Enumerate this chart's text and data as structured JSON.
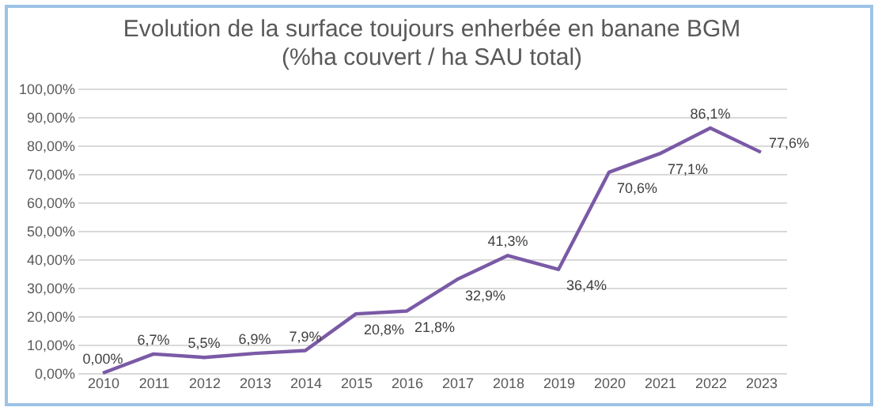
{
  "chart_data": {
    "type": "line",
    "title": "Evolution de la surface toujours enherbée  en banane BGM",
    "subtitle": "(%ha couvert / ha SAU total)",
    "categories": [
      "2010",
      "2011",
      "2012",
      "2013",
      "2014",
      "2015",
      "2016",
      "2017",
      "2018",
      "2019",
      "2020",
      "2021",
      "2022",
      "2023"
    ],
    "series": [
      {
        "color": "#7a5aa6",
        "values": [
          0,
          6.7,
          5.5,
          6.9,
          7.9,
          20.8,
          21.8,
          32.9,
          41.3,
          36.4,
          70.6,
          77.1,
          86.1,
          77.6
        ],
        "value_labels": [
          "0,00%",
          "6,7%",
          "5,5%",
          "6,9%",
          "7,9%",
          "20,8%",
          "21,8%",
          "32,9%",
          "41,3%",
          "36,4%",
          "70,6%",
          "77,1%",
          "86,1%",
          "77,6%"
        ]
      }
    ],
    "ylim": [
      0,
      100
    ],
    "yticks": [
      {
        "value": 0,
        "label": "0,00%"
      },
      {
        "value": 10,
        "label": "10,00%"
      },
      {
        "value": 20,
        "label": "20,00%"
      },
      {
        "value": 30,
        "label": "30,00%"
      },
      {
        "value": 40,
        "label": "40,00%"
      },
      {
        "value": 50,
        "label": "50,00%"
      },
      {
        "value": 60,
        "label": "60,00%"
      },
      {
        "value": 70,
        "label": "70,00%"
      },
      {
        "value": 80,
        "label": "80,00%"
      },
      {
        "value": 90,
        "label": "90,00%"
      },
      {
        "value": 100,
        "label": "100,00%"
      }
    ],
    "grid": "y",
    "marker": "none",
    "line_style": "solid"
  }
}
